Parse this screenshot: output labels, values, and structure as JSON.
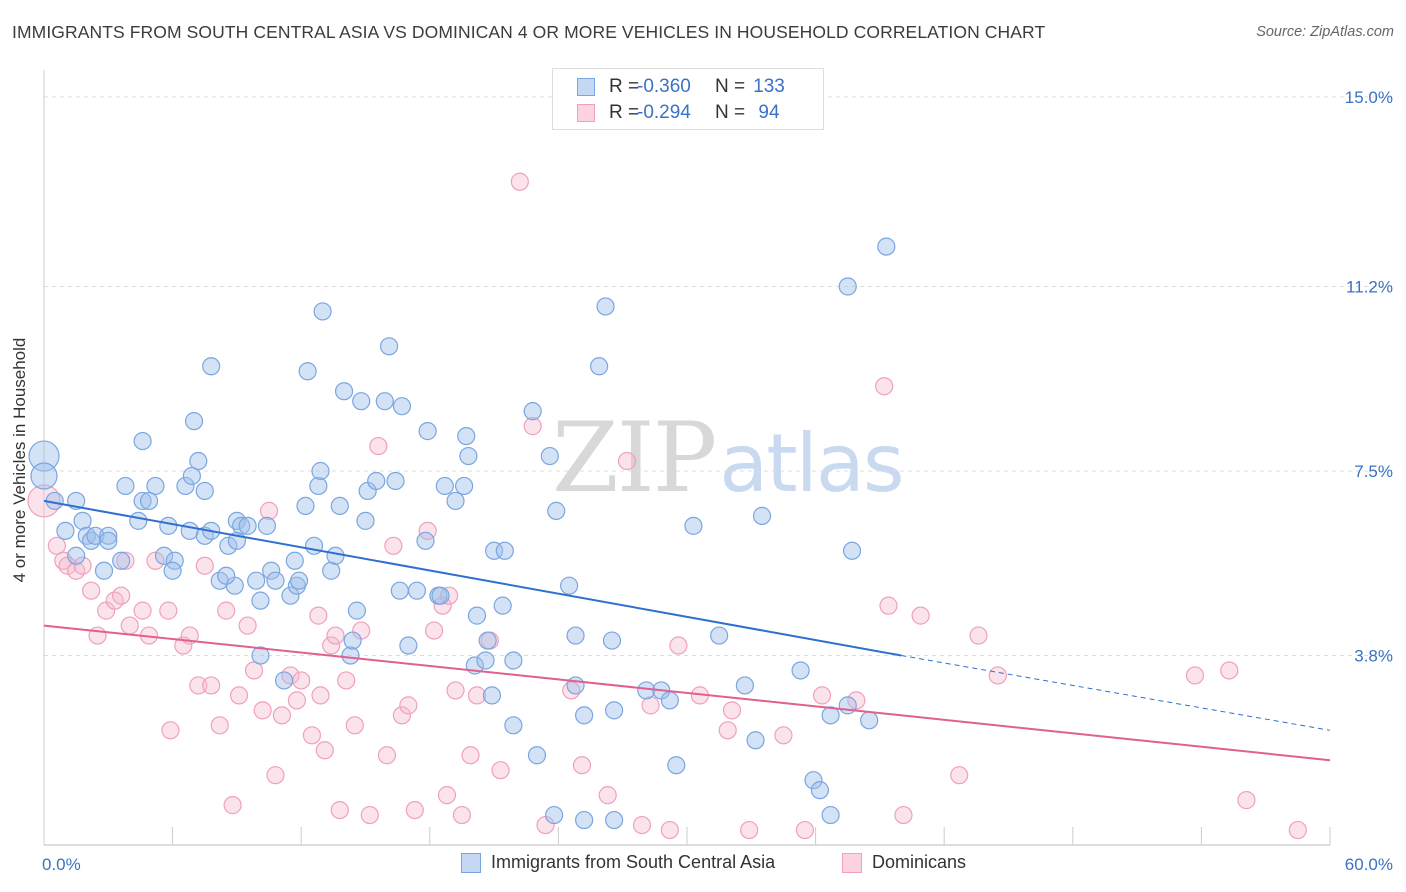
{
  "title": "IMMIGRANTS FROM SOUTH CENTRAL ASIA VS DOMINICAN 4 OR MORE VEHICLES IN HOUSEHOLD CORRELATION CHART",
  "source": "Source: ZipAtlas.com",
  "watermark": {
    "zip": "ZIP",
    "atlas": "atlas"
  },
  "colors": {
    "blue": "#7aa6e0",
    "blue_line": "#2f6fcf",
    "pink": "#f0a0bc",
    "pink_line": "#e0608e",
    "tick_label": "#3a72c4"
  },
  "legend_top": [
    {
      "r_label": "R =",
      "r_value": "-0.360",
      "n_label": "N =",
      "n_value": "133"
    },
    {
      "r_label": "R =",
      "r_value": "-0.294",
      "n_label": "N =",
      "n_value": "94"
    }
  ],
  "chart_data": {
    "type": "scatter",
    "title": "IMMIGRANTS FROM SOUTH CENTRAL ASIA VS DOMINICAN 4 OR MORE VEHICLES IN HOUSEHOLD CORRELATION CHART",
    "xlabel": "",
    "ylabel": "4 or more Vehicles in Household",
    "xlim": [
      0,
      60
    ],
    "ylim": [
      0,
      15.6
    ],
    "x_tick_labels": [
      "0.0%",
      "60.0%"
    ],
    "y_ticks": [
      3.8,
      7.5,
      11.2,
      15.0
    ],
    "y_tick_labels": [
      "3.8%",
      "7.5%",
      "11.2%",
      "15.0%"
    ],
    "grid": "horizontal dashed",
    "legend_position": "bottom",
    "series": [
      {
        "name": "Immigrants from South Central Asia",
        "color": "#7aa6e0",
        "R": -0.36,
        "N": 133,
        "trend": {
          "x0": 0,
          "y0": 6.9,
          "x1": 40,
          "y1": 3.8,
          "dashed_to_x": 60,
          "dashed_to_y": 2.3
        },
        "points": [
          [
            0,
            7.8
          ],
          [
            0,
            7.4
          ],
          [
            0.5,
            6.9
          ],
          [
            1,
            6.3
          ],
          [
            1.5,
            6.9
          ],
          [
            1.5,
            5.8
          ],
          [
            1.8,
            6.5
          ],
          [
            2,
            6.2
          ],
          [
            2.2,
            6.1
          ],
          [
            2.4,
            6.2
          ],
          [
            2.8,
            5.5
          ],
          [
            3,
            6.2
          ],
          [
            3,
            6.1
          ],
          [
            3.6,
            5.7
          ],
          [
            3.8,
            7.2
          ],
          [
            4.4,
            6.5
          ],
          [
            4.6,
            6.9
          ],
          [
            4.9,
            6.9
          ],
          [
            4.6,
            8.1
          ],
          [
            5.2,
            7.2
          ],
          [
            5.6,
            5.8
          ],
          [
            5.8,
            6.4
          ],
          [
            6.1,
            5.7
          ],
          [
            6,
            5.5
          ],
          [
            6.6,
            7.2
          ],
          [
            6.8,
            6.3
          ],
          [
            6.9,
            7.4
          ],
          [
            7,
            8.5
          ],
          [
            7.2,
            7.7
          ],
          [
            7.5,
            7.1
          ],
          [
            7.5,
            6.2
          ],
          [
            7.8,
            6.3
          ],
          [
            7.8,
            9.6
          ],
          [
            8.2,
            5.3
          ],
          [
            8.6,
            6.0
          ],
          [
            8.9,
            5.2
          ],
          [
            8.5,
            5.4
          ],
          [
            9,
            6.5
          ],
          [
            9,
            6.1
          ],
          [
            9.2,
            6.4
          ],
          [
            9.5,
            6.4
          ],
          [
            9.9,
            5.3
          ],
          [
            10.1,
            4.9
          ],
          [
            10.1,
            3.8
          ],
          [
            10.4,
            6.4
          ],
          [
            10.6,
            5.5
          ],
          [
            10.8,
            5.3
          ],
          [
            11.2,
            3.3
          ],
          [
            11.5,
            5.0
          ],
          [
            11.7,
            5.7
          ],
          [
            11.8,
            5.2
          ],
          [
            11.9,
            5.3
          ],
          [
            12.2,
            6.8
          ],
          [
            12.3,
            9.5
          ],
          [
            12.6,
            6.0
          ],
          [
            12.8,
            7.2
          ],
          [
            12.9,
            7.5
          ],
          [
            13,
            10.7
          ],
          [
            13.4,
            5.5
          ],
          [
            13.6,
            5.8
          ],
          [
            13.8,
            6.8
          ],
          [
            14,
            9.1
          ],
          [
            14.3,
            3.8
          ],
          [
            14.4,
            4.1
          ],
          [
            14.6,
            4.7
          ],
          [
            14.8,
            8.9
          ],
          [
            15,
            6.5
          ],
          [
            15.1,
            7.1
          ],
          [
            15.5,
            7.3
          ],
          [
            15.9,
            8.9
          ],
          [
            16.1,
            10.0
          ],
          [
            16.4,
            7.3
          ],
          [
            16.7,
            8.8
          ],
          [
            16.6,
            5.1
          ],
          [
            17,
            4.0
          ],
          [
            17.4,
            5.1
          ],
          [
            17.8,
            6.1
          ],
          [
            17.9,
            8.3
          ],
          [
            18.4,
            5.0
          ],
          [
            18.5,
            5.0
          ],
          [
            18.7,
            7.2
          ],
          [
            19.2,
            6.9
          ],
          [
            19.6,
            7.2
          ],
          [
            19.7,
            8.2
          ],
          [
            19.8,
            7.8
          ],
          [
            20.1,
            3.6
          ],
          [
            20.2,
            4.6
          ],
          [
            20.6,
            3.7
          ],
          [
            20.7,
            4.1
          ],
          [
            20.9,
            3.0
          ],
          [
            21,
            5.9
          ],
          [
            21.5,
            5.9
          ],
          [
            21.4,
            4.8
          ],
          [
            21.9,
            3.7
          ],
          [
            21.9,
            2.4
          ],
          [
            22.8,
            8.7
          ],
          [
            23.6,
            7.8
          ],
          [
            23,
            1.8
          ],
          [
            23.9,
            6.7
          ],
          [
            23.8,
            0.6
          ],
          [
            24.5,
            5.2
          ],
          [
            24.8,
            4.2
          ],
          [
            24.8,
            3.2
          ],
          [
            25.2,
            2.6
          ],
          [
            25.2,
            0.5
          ],
          [
            25.9,
            9.6
          ],
          [
            26.2,
            10.8
          ],
          [
            26.6,
            2.7
          ],
          [
            26.5,
            4.1
          ],
          [
            26.6,
            0.5
          ],
          [
            28.1,
            3.1
          ],
          [
            28.8,
            3.1
          ],
          [
            29.2,
            2.9
          ],
          [
            29.5,
            1.6
          ],
          [
            30.3,
            6.4
          ],
          [
            31.5,
            4.2
          ],
          [
            32.7,
            3.2
          ],
          [
            33.2,
            2.1
          ],
          [
            33.5,
            6.6
          ],
          [
            35.3,
            3.5
          ],
          [
            35.9,
            1.3
          ],
          [
            36.2,
            1.1
          ],
          [
            36.7,
            2.6
          ],
          [
            36.7,
            0.6
          ],
          [
            37.5,
            2.8
          ],
          [
            37.5,
            11.2
          ],
          [
            37.7,
            5.9
          ],
          [
            38.5,
            2.5
          ],
          [
            39.3,
            12.0
          ]
        ]
      },
      {
        "name": "Dominicans",
        "color": "#f0a0bc",
        "R": -0.294,
        "N": 94,
        "trend": {
          "x0": 0,
          "y0": 4.4,
          "x1": 60,
          "y1": 1.7
        },
        "points": [
          [
            0,
            6.9
          ],
          [
            0.6,
            6.0
          ],
          [
            0.9,
            5.7
          ],
          [
            1.1,
            5.6
          ],
          [
            1.5,
            5.5
          ],
          [
            1.8,
            5.6
          ],
          [
            2.2,
            5.1
          ],
          [
            2.5,
            4.2
          ],
          [
            2.9,
            4.7
          ],
          [
            3.3,
            4.9
          ],
          [
            3.6,
            5.0
          ],
          [
            3.8,
            5.7
          ],
          [
            4,
            4.4
          ],
          [
            4.6,
            4.7
          ],
          [
            4.9,
            4.2
          ],
          [
            5.2,
            5.7
          ],
          [
            5.8,
            4.7
          ],
          [
            5.9,
            2.3
          ],
          [
            6.5,
            4.0
          ],
          [
            6.8,
            4.2
          ],
          [
            7.2,
            3.2
          ],
          [
            7.5,
            5.6
          ],
          [
            7.8,
            3.2
          ],
          [
            8.2,
            2.4
          ],
          [
            8.5,
            4.7
          ],
          [
            8.8,
            0.8
          ],
          [
            9.1,
            3.0
          ],
          [
            9.5,
            4.4
          ],
          [
            9.8,
            3.5
          ],
          [
            10.2,
            2.7
          ],
          [
            10.5,
            6.7
          ],
          [
            10.8,
            1.4
          ],
          [
            11.1,
            2.6
          ],
          [
            11.5,
            3.4
          ],
          [
            11.8,
            2.9
          ],
          [
            12,
            3.3
          ],
          [
            12.5,
            2.2
          ],
          [
            12.8,
            4.6
          ],
          [
            13.1,
            1.9
          ],
          [
            13.4,
            4.0
          ],
          [
            13.6,
            4.2
          ],
          [
            13.8,
            0.7
          ],
          [
            14.1,
            3.3
          ],
          [
            14.5,
            2.4
          ],
          [
            14.8,
            4.3
          ],
          [
            15.2,
            0.6
          ],
          [
            15.6,
            8.0
          ],
          [
            16,
            1.8
          ],
          [
            16.3,
            6.0
          ],
          [
            16.7,
            2.6
          ],
          [
            17,
            2.8
          ],
          [
            17.3,
            0.7
          ],
          [
            17.9,
            6.3
          ],
          [
            18.2,
            4.3
          ],
          [
            18.6,
            4.8
          ],
          [
            18.8,
            1.0
          ],
          [
            19.2,
            3.1
          ],
          [
            19.5,
            0.6
          ],
          [
            19.9,
            1.8
          ],
          [
            20.2,
            3.0
          ],
          [
            20.8,
            4.1
          ],
          [
            21.3,
            1.5
          ],
          [
            22.2,
            13.3
          ],
          [
            22.8,
            8.4
          ],
          [
            23.4,
            0.4
          ],
          [
            24.6,
            3.1
          ],
          [
            25.1,
            1.6
          ],
          [
            26.3,
            1.0
          ],
          [
            27.2,
            7.7
          ],
          [
            27.9,
            0.4
          ],
          [
            28.3,
            2.8
          ],
          [
            29.2,
            0.3
          ],
          [
            30.6,
            3.0
          ],
          [
            31.9,
            2.3
          ],
          [
            32.1,
            2.7
          ],
          [
            32.9,
            0.3
          ],
          [
            34.5,
            2.2
          ],
          [
            35.5,
            0.3
          ],
          [
            36.3,
            3.0
          ],
          [
            37.9,
            2.9
          ],
          [
            39.2,
            9.2
          ],
          [
            39.4,
            4.8
          ],
          [
            40.1,
            0.6
          ],
          [
            40.9,
            4.6
          ],
          [
            42.7,
            1.4
          ],
          [
            43.6,
            4.2
          ],
          [
            44.5,
            3.4
          ],
          [
            53.7,
            3.4
          ],
          [
            55.3,
            3.5
          ],
          [
            56.1,
            0.9
          ],
          [
            58.5,
            0.3
          ],
          [
            29.6,
            4.0
          ],
          [
            18.9,
            5.0
          ],
          [
            12.9,
            3.0
          ]
        ]
      }
    ]
  },
  "legend_bottom": [
    {
      "label": "Immigrants from South Central Asia"
    },
    {
      "label": "Dominicans"
    }
  ]
}
